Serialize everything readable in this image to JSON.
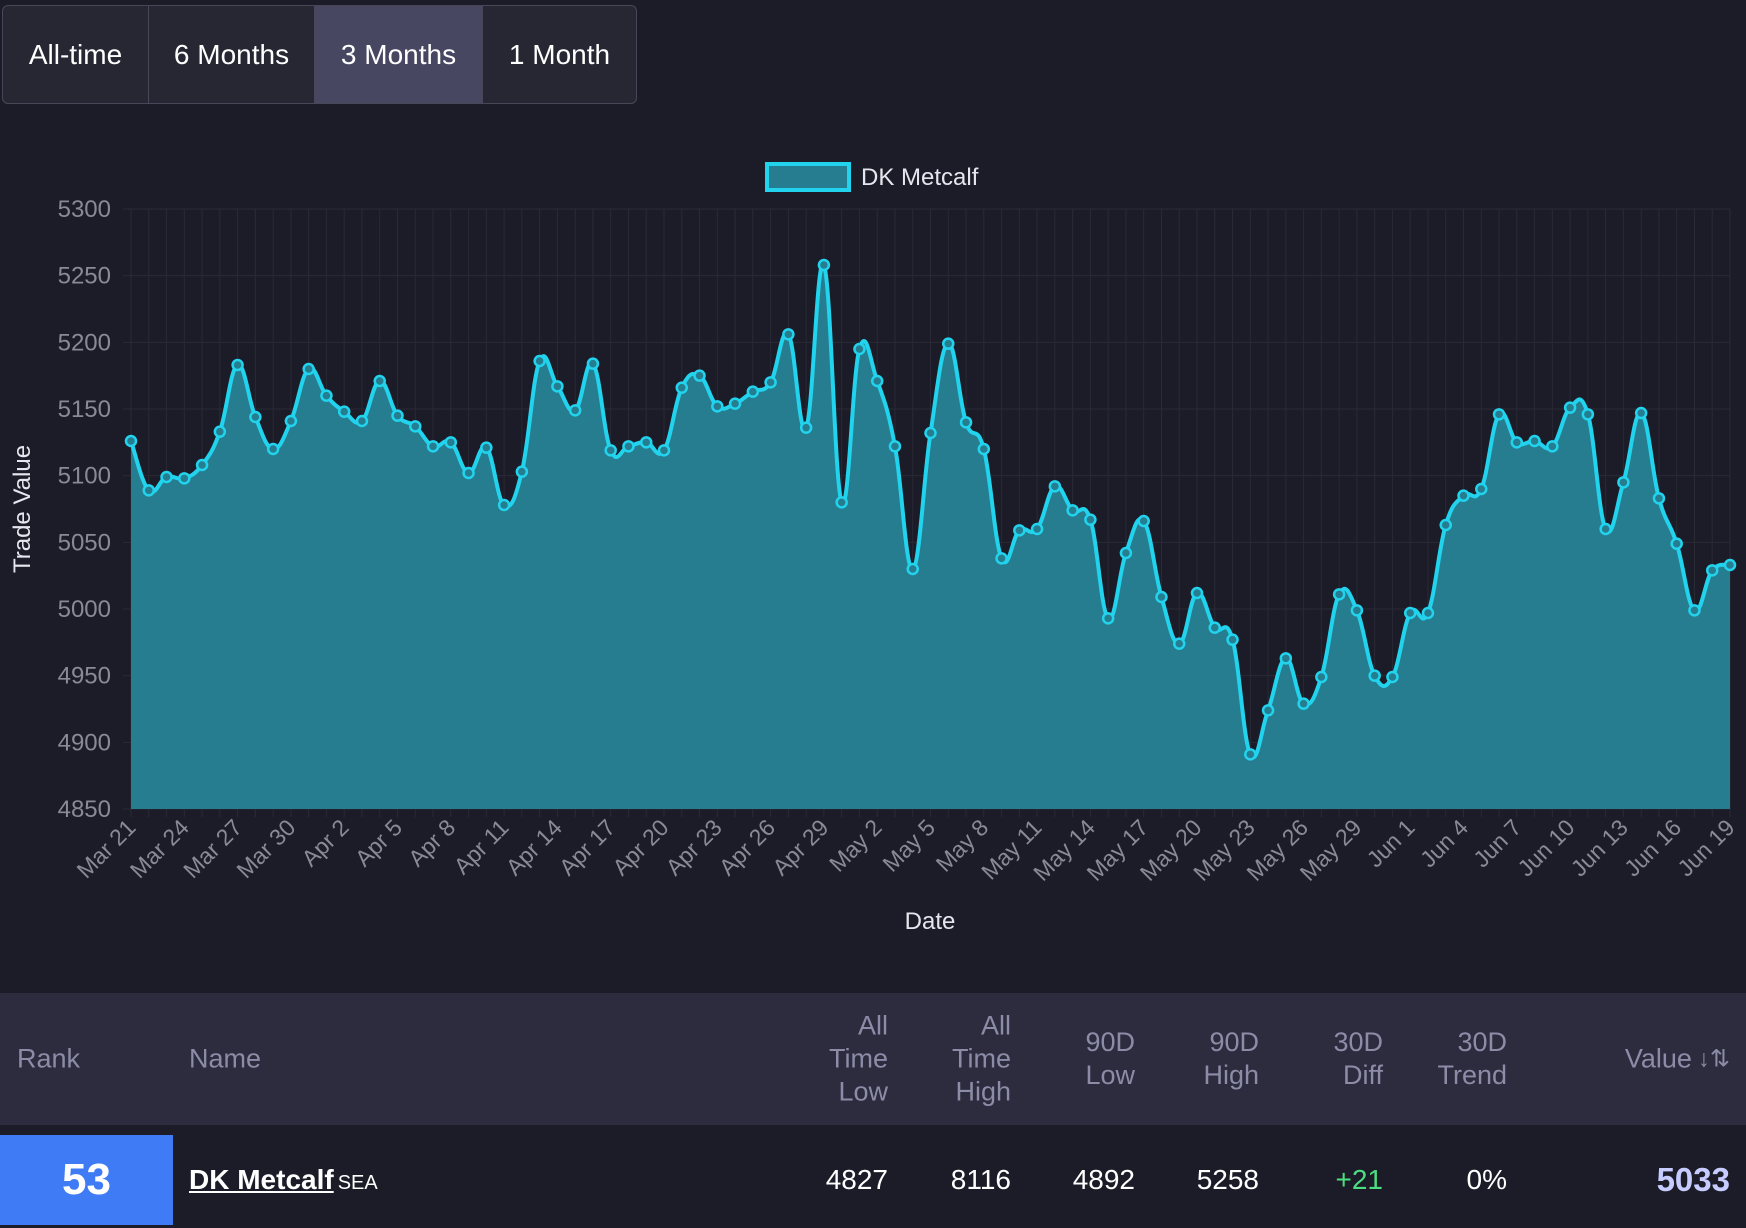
{
  "range_tabs": [
    {
      "label": "All-time",
      "active": false
    },
    {
      "label": "6 Months",
      "active": false
    },
    {
      "label": "3 Months",
      "active": true
    },
    {
      "label": "1 Month",
      "active": false
    }
  ],
  "chart_data": {
    "type": "area",
    "series": [
      {
        "name": "DK Metcalf",
        "color": "#22d3ee",
        "values": [
          5126,
          5089,
          5099,
          5098,
          5108,
          5133,
          5183,
          5144,
          5120,
          5141,
          5180,
          5160,
          5148,
          5141,
          5171,
          5145,
          5137,
          5122,
          5125,
          5102,
          5121,
          5078,
          5103,
          5186,
          5167,
          5149,
          5184,
          5119,
          5122,
          5125,
          5119,
          5166,
          5175,
          5152,
          5154,
          5163,
          5170,
          5206,
          5136,
          5258,
          5080,
          5195,
          5171,
          5122,
          5030,
          5132,
          5199,
          5140,
          5120,
          5038,
          5059,
          5060,
          5092,
          5074,
          5067,
          4993,
          5042,
          5066,
          5009,
          4974,
          5012,
          4986,
          4977,
          4891,
          4924,
          4963,
          4929,
          4949,
          5011,
          4999,
          4950,
          4949,
          4997,
          4997,
          5063,
          5085,
          5090,
          5146,
          5125,
          5126,
          5122,
          5151,
          5146,
          5060,
          5095,
          5147,
          5083,
          5049,
          4999,
          5029,
          5033
        ]
      }
    ],
    "x_tick_labels": [
      "Mar 21",
      "Mar 24",
      "Mar 27",
      "Mar 30",
      "Apr 2",
      "Apr 5",
      "Apr 8",
      "Apr 11",
      "Apr 14",
      "Apr 17",
      "Apr 20",
      "Apr 23",
      "Apr 26",
      "Apr 29",
      "May 2",
      "May 5",
      "May 8",
      "May 11",
      "May 14",
      "May 17",
      "May 20",
      "May 23",
      "May 26",
      "May 29",
      "Jun 1",
      "Jun 4",
      "Jun 7",
      "Jun 10",
      "Jun 13",
      "Jun 16",
      "Jun 19"
    ],
    "y_ticks": [
      5300,
      5250,
      5200,
      5150,
      5100,
      5050,
      5000,
      4950,
      4900,
      4850
    ],
    "ylim": [
      4850,
      5300
    ],
    "xlabel": "Date",
    "ylabel": "Trade Value",
    "grid": true,
    "legend_position": "top-center"
  },
  "table": {
    "headers": {
      "rank": "Rank",
      "name": "Name",
      "all_time_low": [
        "All",
        "Time",
        "Low"
      ],
      "all_time_high": [
        "All",
        "Time",
        "High"
      ],
      "low_90d": [
        "90D",
        "Low"
      ],
      "high_90d": [
        "90D",
        "High"
      ],
      "diff_30d": [
        "30D",
        "Diff"
      ],
      "trend_30d": [
        "30D",
        "Trend"
      ],
      "value": "Value",
      "sort_icon": "sort-descending-icon"
    },
    "row": {
      "rank": "53",
      "name": "DK Metcalf",
      "team": "SEA",
      "all_time_low": "4827",
      "all_time_high": "8116",
      "low_90d": "4892",
      "high_90d": "5258",
      "diff_30d": "+21",
      "trend_30d": "0%",
      "value": "5033"
    }
  },
  "colors": {
    "background": "#1c1c28",
    "line": "#22d3ee",
    "fill": "#257d8f",
    "rank_badge": "#3e7bf5",
    "positive": "#4ade80",
    "value": "#c6ccff"
  }
}
